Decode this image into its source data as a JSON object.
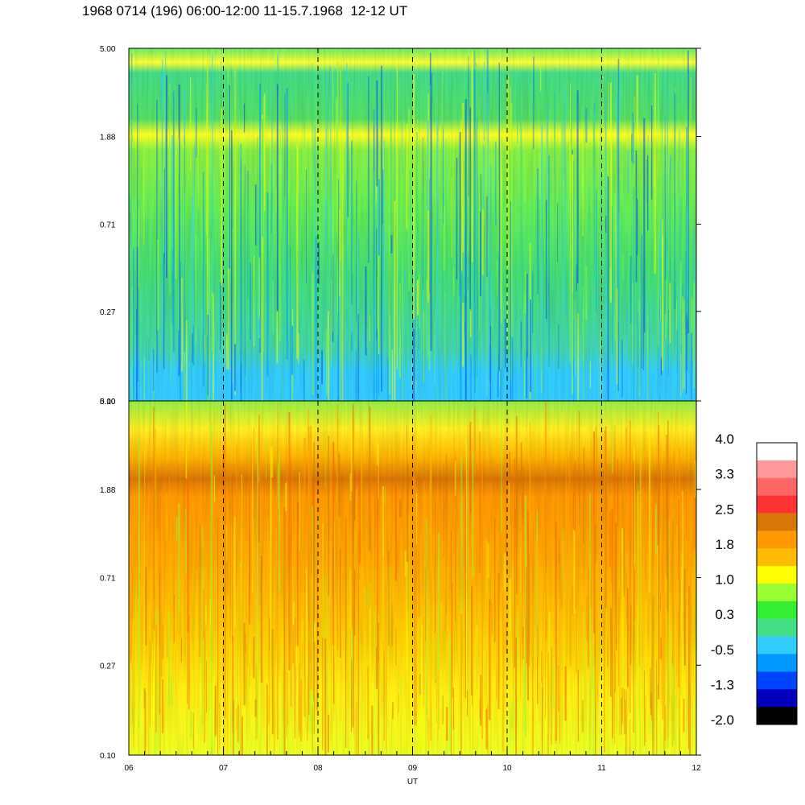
{
  "title": "1968 0714 (196) 06:00-12:00 11-15.7.1968  12-12 UT",
  "chart_data": {
    "type": "heatmap",
    "xlabel": "UT",
    "x_ticks": [
      "06",
      "07",
      "08",
      "09",
      "10",
      "11",
      "12"
    ],
    "xlim": [
      6,
      12
    ],
    "dashed_lines_at_hours": [
      7,
      8,
      9,
      10,
      11
    ],
    "panels": [
      {
        "name": "upper",
        "y_ticks": [
          "5.00",
          "1.88",
          "0.71",
          "0.27",
          "0.10"
        ],
        "ylim": [
          0.1,
          5.0
        ],
        "y_scale": "log",
        "dominant_levels": "green/cyan, yellow band near 1.88"
      },
      {
        "name": "lower",
        "y_ticks": [
          "5.00",
          "1.88",
          "0.71",
          "0.27",
          "0.10"
        ],
        "ylim": [
          0.1,
          5.0
        ],
        "y_scale": "log",
        "dominant_levels": "orange/yellow, dark orange band near 1.88"
      }
    ],
    "colorbar": {
      "labels": [
        "4.0",
        "3.3",
        "2.5",
        "1.8",
        "1.0",
        "0.3",
        "-0.5",
        "-1.3",
        "-2.0"
      ],
      "colors": [
        "#ffffff",
        "#ff9999",
        "#ff6666",
        "#ff3333",
        "#d97706",
        "#ff9900",
        "#ffbb00",
        "#ffff00",
        "#99ff33",
        "#33ee33",
        "#44dd88",
        "#33ccff",
        "#0099ff",
        "#0044ff",
        "#0000bb",
        "#000000"
      ]
    }
  }
}
